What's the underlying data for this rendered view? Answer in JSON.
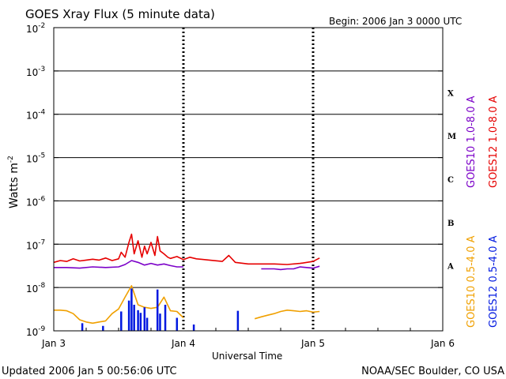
{
  "chart_data": {
    "type": "line",
    "title": "GOES Xray Flux (5 minute data)",
    "begin_label": "Begin:  2006 Jan 3 0000 UTC",
    "xlabel": "Universal Time",
    "ylabel": "Watts m",
    "ylabel_exp": "-2",
    "yscale": "log",
    "ylim": [
      1e-09,
      0.01
    ],
    "y_ticks": [
      {
        "base": "10",
        "exp": "-9"
      },
      {
        "base": "10",
        "exp": "-8"
      },
      {
        "base": "10",
        "exp": "-7"
      },
      {
        "base": "10",
        "exp": "-6"
      },
      {
        "base": "10",
        "exp": "-5"
      },
      {
        "base": "10",
        "exp": "-4"
      },
      {
        "base": "10",
        "exp": "-3"
      },
      {
        "base": "10",
        "exp": "-2"
      }
    ],
    "x_ticks": [
      "Jan 3",
      "Jan 4",
      "Jan 5",
      "Jan 6"
    ],
    "xlim_days": [
      0,
      3
    ],
    "flare_classes": [
      {
        "label": "A",
        "flux": 1e-08
      },
      {
        "label": "B",
        "flux": 1e-07
      },
      {
        "label": "C",
        "flux": 1e-06
      },
      {
        "label": "M",
        "flux": 1e-05
      },
      {
        "label": "X",
        "flux": 0.0001
      }
    ],
    "series": [
      {
        "name": "GOES10 1.0-8.0 A",
        "color": "#7b00c8",
        "x": [
          0.0,
          0.1,
          0.2,
          0.3,
          0.4,
          0.5,
          0.55,
          0.6,
          0.65,
          0.7,
          0.75,
          0.8,
          0.85,
          0.9,
          0.95,
          1.0
        ],
        "y": [
          2.9e-08,
          2.9e-08,
          2.8e-08,
          3e-08,
          2.9e-08,
          3e-08,
          3.4e-08,
          4.2e-08,
          3.8e-08,
          3.3e-08,
          3.6e-08,
          3.3e-08,
          3.5e-08,
          3.2e-08,
          3e-08,
          3e-08
        ]
      },
      {
        "name": "GOES10 1.0-8.0 A (Jan 4-5)",
        "color": "#7b00c8",
        "x": [
          1.6,
          1.65,
          1.7,
          1.75,
          1.8,
          1.85,
          1.9,
          1.95,
          2.0,
          2.05
        ],
        "y": [
          2.7e-08,
          2.7e-08,
          2.7e-08,
          2.6e-08,
          2.7e-08,
          2.7e-08,
          3e-08,
          2.9e-08,
          2.8e-08,
          3.1e-08
        ]
      },
      {
        "name": "GOES12 1.0-8.0 A",
        "color": "#e60000",
        "x": [
          0.0,
          0.05,
          0.1,
          0.15,
          0.2,
          0.25,
          0.3,
          0.35,
          0.4,
          0.45,
          0.5,
          0.52,
          0.55,
          0.58,
          0.6,
          0.62,
          0.65,
          0.68,
          0.7,
          0.72,
          0.75,
          0.78,
          0.8,
          0.82,
          0.85,
          0.88,
          0.9,
          0.95,
          1.0,
          1.05,
          1.1,
          1.2,
          1.3,
          1.35,
          1.4,
          1.5,
          1.6,
          1.7,
          1.8,
          1.9,
          2.0,
          2.05
        ],
        "y": [
          3.8e-08,
          4.2e-08,
          4e-08,
          4.6e-08,
          4.1e-08,
          4.3e-08,
          4.5e-08,
          4.3e-08,
          4.8e-08,
          4.2e-08,
          4.6e-08,
          6.5e-08,
          5e-08,
          1.1e-07,
          1.7e-07,
          6e-08,
          1.2e-07,
          5e-08,
          9e-08,
          6e-08,
          1.1e-07,
          5.5e-08,
          1.5e-07,
          7e-08,
          6e-08,
          5e-08,
          4.7e-08,
          5.2e-08,
          4.4e-08,
          5e-08,
          4.6e-08,
          4.3e-08,
          4e-08,
          5.5e-08,
          3.8e-08,
          3.5e-08,
          3.5e-08,
          3.5e-08,
          3.4e-08,
          3.6e-08,
          4e-08,
          4.8e-08
        ]
      },
      {
        "name": "GOES10 0.5-4.0 A",
        "color": "#f0a000",
        "x": [
          0.0,
          0.05,
          0.1,
          0.15,
          0.2,
          0.25,
          0.3,
          0.35,
          0.4,
          0.45,
          0.5,
          0.55,
          0.6,
          0.65,
          0.7,
          0.75,
          0.8,
          0.85,
          0.9,
          0.95,
          1.0
        ],
        "y": [
          3e-09,
          3e-09,
          2.9e-09,
          2.5e-09,
          1.8e-09,
          1.6e-09,
          1.5e-09,
          1.6e-09,
          1.7e-09,
          2.5e-09,
          3.2e-09,
          6e-09,
          1.1e-08,
          4e-09,
          3.5e-09,
          3.3e-09,
          3.5e-09,
          6e-09,
          2.9e-09,
          2.8e-09,
          2e-09
        ]
      },
      {
        "name": "GOES10 0.5-4.0 A (Jan 4-5)",
        "color": "#f0a000",
        "x": [
          1.55,
          1.6,
          1.65,
          1.7,
          1.75,
          1.8,
          1.85,
          1.9,
          1.95,
          2.0,
          2.05
        ],
        "y": [
          1.9e-09,
          2.1e-09,
          2.3e-09,
          2.5e-09,
          2.8e-09,
          3e-09,
          2.9e-09,
          2.8e-09,
          2.9e-09,
          2.7e-09,
          2.8e-09
        ]
      },
      {
        "name": "GOES12 0.5-4.0 A",
        "color": "#0018e0",
        "x": [
          0.22,
          0.38,
          0.52,
          0.58,
          0.6,
          0.62,
          0.65,
          0.67,
          0.7,
          0.72,
          0.8,
          0.82,
          0.86,
          0.95,
          1.08,
          1.42
        ],
        "y": [
          1.5e-09,
          1.3e-09,
          2.8e-09,
          5e-09,
          9.5e-09,
          4e-09,
          3e-09,
          2.6e-09,
          3.5e-09,
          2e-09,
          9e-09,
          2.5e-09,
          4e-09,
          2e-09,
          1.4e-09,
          2.9e-09
        ]
      }
    ]
  },
  "legend_left": [
    {
      "text": "GOES10 1.0-8.0 A",
      "color": "#7b00c8"
    },
    {
      "text": "GOES10 0.5-4.0 A",
      "color": "#f0a000"
    }
  ],
  "legend_right": [
    {
      "text": "GOES12 1.0-8.0 A",
      "color": "#e60000"
    },
    {
      "text": "GOES12 0.5-4.0 A",
      "color": "#0018e0"
    }
  ],
  "footer": {
    "updated": "Updated 2006 Jan  5 00:56:06 UTC",
    "credit": "NOAA/SEC Boulder, CO USA"
  }
}
